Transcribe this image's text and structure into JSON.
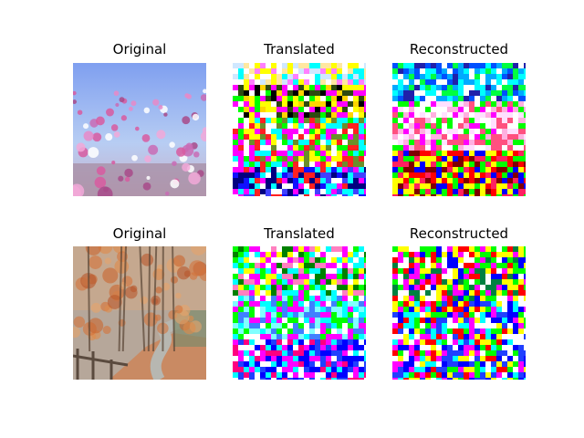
{
  "rows": [
    {
      "panels": [
        {
          "title": "Original",
          "icon": "flower-field-image"
        },
        {
          "title": "Translated",
          "icon": "noisy-translation-image"
        },
        {
          "title": "Reconstructed",
          "icon": "noisy-reconstruction-image"
        }
      ]
    },
    {
      "panels": [
        {
          "title": "Original",
          "icon": "autumn-path-image"
        },
        {
          "title": "Translated",
          "icon": "noisy-translation-image"
        },
        {
          "title": "Reconstructed",
          "icon": "noisy-reconstruction-image"
        }
      ]
    }
  ]
}
